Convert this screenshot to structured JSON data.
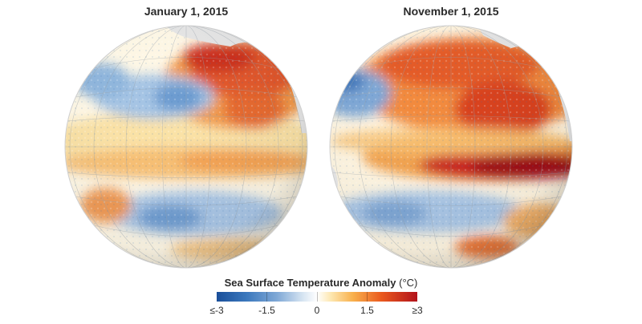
{
  "panels": [
    {
      "title": "January 1, 2015"
    },
    {
      "title": "November 1, 2015"
    }
  ],
  "legend": {
    "title_bold": "Sea Surface Temperature Anomaly",
    "title_unit": " (°C)",
    "ticks": [
      {
        "value": -3,
        "label": "≤-3"
      },
      {
        "value": -1.5,
        "label": "-1.5"
      },
      {
        "value": 0,
        "label": "0"
      },
      {
        "value": 1.5,
        "label": "1.5"
      },
      {
        "value": 3,
        "label": "≥3"
      }
    ],
    "colors": [
      "#1a4f9a",
      "#3b78bd",
      "#7fa8d6",
      "#ffffff",
      "#f8b04c",
      "#ea5a1e",
      "#b2121b"
    ]
  }
}
